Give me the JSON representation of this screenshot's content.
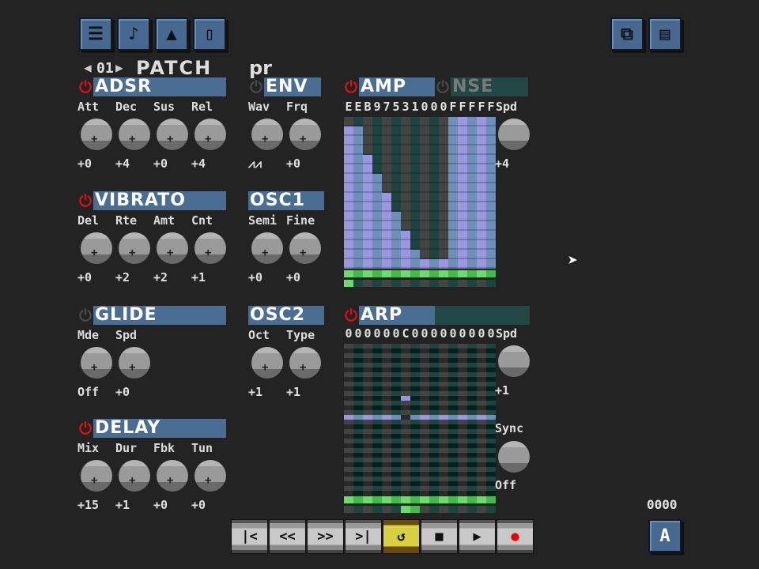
{
  "toolbar": {
    "left": [
      {
        "name": "tracker-view",
        "icon": "list-icon",
        "glyph": "☰"
      },
      {
        "name": "notes-view",
        "icon": "music-note-icon",
        "glyph": "♪"
      },
      {
        "name": "wave-view",
        "icon": "triangle-icon",
        "glyph": "▲"
      },
      {
        "name": "file-view",
        "icon": "page-icon",
        "glyph": "▯"
      }
    ],
    "right": [
      {
        "name": "copy",
        "icon": "copy-icon",
        "glyph": "⧉"
      },
      {
        "name": "paste",
        "icon": "paste-icon",
        "glyph": "▤"
      }
    ]
  },
  "patch": {
    "prev": "◀",
    "number": "01",
    "next": "▶",
    "label": "PATCH",
    "name": "pr"
  },
  "sections": {
    "adsr": {
      "title": "ADSR",
      "on": true,
      "labels": [
        "Att",
        "Dec",
        "Sus",
        "Rel"
      ],
      "values": [
        "+0",
        "+4",
        "+0",
        "+4"
      ]
    },
    "env": {
      "title": "ENV",
      "on": false,
      "labels": [
        "Wav",
        "Frq"
      ],
      "values": [
        "⩘⩘",
        "+0"
      ]
    },
    "vibrato": {
      "title": "VIBRATO",
      "on": true,
      "labels": [
        "Del",
        "Rte",
        "Amt",
        "Cnt"
      ],
      "values": [
        "+0",
        "+2",
        "+2",
        "+1"
      ]
    },
    "osc1": {
      "title": "OSC1",
      "labels": [
        "Semi",
        "Fine"
      ],
      "values": [
        "+0",
        "+0"
      ]
    },
    "glide": {
      "title": "GLIDE",
      "on": false,
      "labels": [
        "Mde",
        "Spd"
      ],
      "values": [
        "Off",
        "+0"
      ]
    },
    "osc2": {
      "title": "OSC2",
      "labels": [
        "Oct",
        "Type"
      ],
      "values": [
        "+1",
        "+1"
      ]
    },
    "delay": {
      "title": "DELAY",
      "on": true,
      "labels": [
        "Mix",
        "Dur",
        "Fbk",
        "Tun"
      ],
      "values": [
        "+15",
        "+1",
        "+0",
        "+0"
      ]
    }
  },
  "amp": {
    "title": "AMP",
    "on": true,
    "nse_title": "NSE",
    "nse_on": false,
    "hex_values": [
      "E",
      "E",
      "B",
      "9",
      "7",
      "5",
      "3",
      "1",
      "0",
      "0",
      "0",
      "F",
      "F",
      "F",
      "F",
      "F"
    ],
    "spd_label": "Spd",
    "spd_value": "+4"
  },
  "arp": {
    "title": "ARP",
    "on": true,
    "hex_values": [
      "0",
      "0",
      "0",
      "0",
      "0",
      "0",
      "C",
      "0",
      "0",
      "0",
      "0",
      "0",
      "0",
      "0",
      "0",
      "0"
    ],
    "spd_label": "Spd",
    "spd_value": "+1",
    "sync_label": "Sync",
    "sync_value": "Off",
    "playhead_step": 6
  },
  "counter": "0000",
  "mode_button": "A",
  "transport": [
    {
      "n": "skip-start",
      "g": "|<"
    },
    {
      "n": "rewind",
      "g": "<<"
    },
    {
      "n": "fast-forward",
      "g": ">>"
    },
    {
      "n": "skip-end",
      "g": ">|"
    },
    {
      "n": "loop",
      "g": "↺",
      "active": true
    },
    {
      "n": "stop",
      "g": "■"
    },
    {
      "n": "play",
      "g": "▶"
    },
    {
      "n": "record",
      "g": "●"
    }
  ],
  "colors": {
    "accent": "#4a6d94",
    "power_on": "#e01010",
    "fill_a": "#9c96e0",
    "fill_b": "#6e90b8",
    "green": "#6fd873"
  }
}
